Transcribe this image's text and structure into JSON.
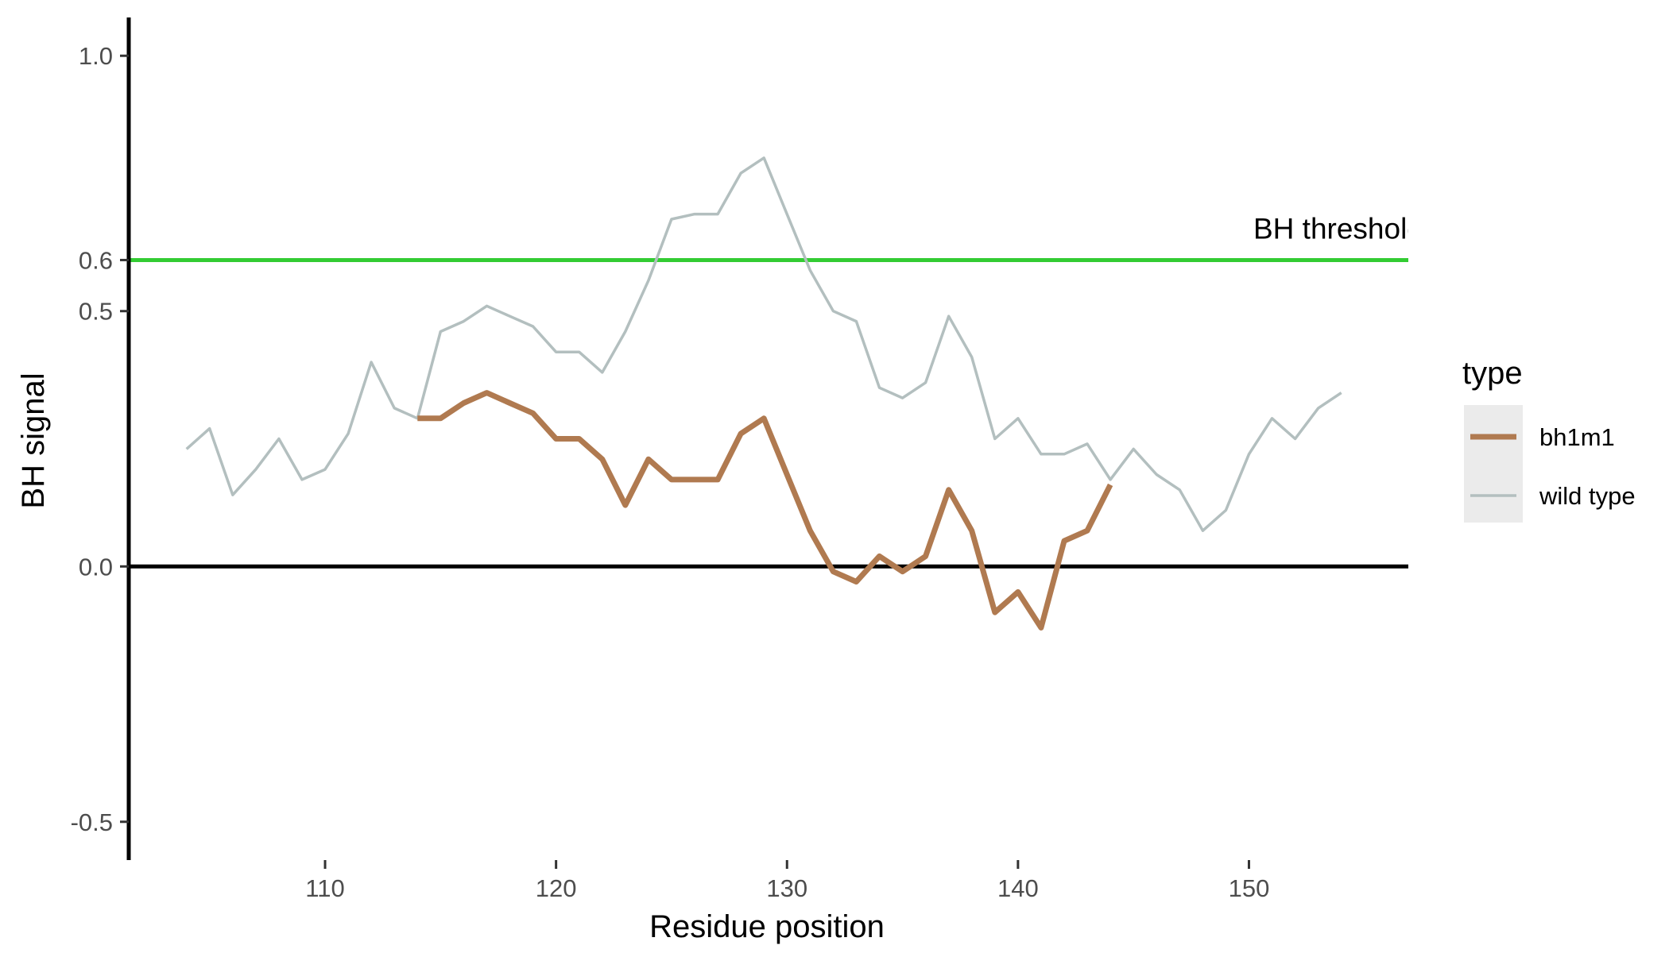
{
  "chart_data": {
    "type": "line",
    "title": "",
    "xlabel": "Residue position",
    "ylabel": "BH signal",
    "xlim": [
      101.5,
      156.9
    ],
    "ylim": [
      -0.575,
      1.075
    ],
    "x_ticks": [
      110,
      120,
      130,
      140,
      150
    ],
    "y_ticks": [
      -0.5,
      0.0,
      0.5,
      0.6,
      1.0
    ],
    "y_tick_labels": [
      "-0.5",
      "0.0",
      "0.5",
      "0.6",
      "1.0"
    ],
    "grid": false,
    "legend": {
      "title": "type",
      "position": "right",
      "entries": [
        "bh1m1",
        "wild type"
      ]
    },
    "reference_lines": [
      {
        "y": 0.6,
        "color": "#33cc33",
        "label": "BH threshold"
      },
      {
        "y": 0.0,
        "color": "#000000",
        "label": ""
      }
    ],
    "series": [
      {
        "name": "bh1m1",
        "color": "#b07a50",
        "x": [
          114,
          115,
          116,
          117,
          118,
          119,
          120,
          121,
          122,
          123,
          124,
          125,
          126,
          127,
          128,
          129,
          130,
          131,
          132,
          133,
          134,
          135,
          136,
          137,
          138,
          139,
          140,
          141,
          142,
          143,
          144
        ],
        "values": [
          0.29,
          0.29,
          0.32,
          0.34,
          0.32,
          0.3,
          0.25,
          0.25,
          0.21,
          0.12,
          0.21,
          0.17,
          0.17,
          0.17,
          0.26,
          0.29,
          0.18,
          0.07,
          -0.01,
          -0.03,
          0.02,
          -0.01,
          0.02,
          0.15,
          0.07,
          -0.09,
          -0.05,
          -0.12,
          0.05,
          0.07,
          0.16
        ]
      },
      {
        "name": "wild type",
        "color": "#b3bfbf",
        "x": [
          104,
          105,
          106,
          107,
          108,
          109,
          110,
          111,
          112,
          113,
          114,
          115,
          116,
          117,
          118,
          119,
          120,
          121,
          122,
          123,
          124,
          125,
          126,
          127,
          128,
          129,
          130,
          131,
          132,
          133,
          134,
          135,
          136,
          137,
          138,
          139,
          140,
          141,
          142,
          143,
          144,
          145,
          146,
          147,
          148,
          149,
          150,
          151,
          152,
          153,
          154
        ],
        "values": [
          0.23,
          0.27,
          0.14,
          0.19,
          0.25,
          0.17,
          0.19,
          0.26,
          0.4,
          0.31,
          0.29,
          0.46,
          0.48,
          0.51,
          0.49,
          0.47,
          0.42,
          0.42,
          0.38,
          0.46,
          0.56,
          0.68,
          0.69,
          0.69,
          0.77,
          0.8,
          0.69,
          0.58,
          0.5,
          0.48,
          0.35,
          0.33,
          0.36,
          0.49,
          0.41,
          0.25,
          0.29,
          0.22,
          0.22,
          0.24,
          0.17,
          0.23,
          0.18,
          0.15,
          0.07,
          0.11,
          0.22,
          0.29,
          0.25,
          0.31,
          0.34
        ]
      }
    ]
  }
}
